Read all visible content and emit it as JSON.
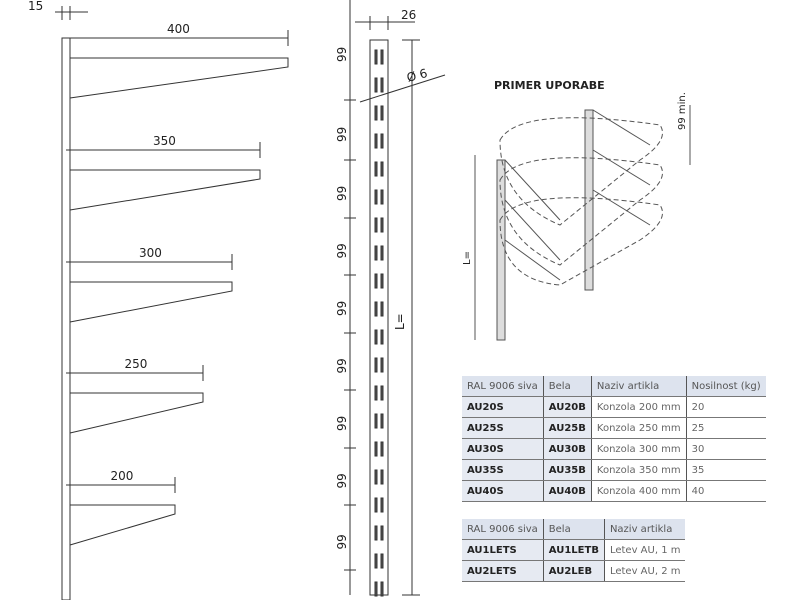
{
  "drawing": {
    "bracket_width": "15",
    "bracket_lengths": [
      "400",
      "350",
      "300",
      "250",
      "200"
    ],
    "rail_width": "26",
    "hole_diameter": "Ø 6",
    "hole_spacing": "99",
    "rail_length": "L=",
    "example_title": "PRIMER UPORABE",
    "example_min_spacing": "99 min.",
    "example_length": "L="
  },
  "brackets_table": {
    "headers": [
      "RAL 9006 siva",
      "Bela",
      "Naziv artikla",
      "Nosilnost (kg)"
    ],
    "rows": [
      [
        "AU20S",
        "AU20B",
        "Konzola 200 mm",
        "20"
      ],
      [
        "AU25S",
        "AU25B",
        "Konzola 250 mm",
        "25"
      ],
      [
        "AU30S",
        "AU30B",
        "Konzola 300 mm",
        "30"
      ],
      [
        "AU35S",
        "AU35B",
        "Konzola 350 mm",
        "35"
      ],
      [
        "AU40S",
        "AU40B",
        "Konzola 400 mm",
        "40"
      ]
    ]
  },
  "rails_table": {
    "headers": [
      "RAL 9006 siva",
      "Bela",
      "Naziv artikla"
    ],
    "rows": [
      [
        "AU1LETS",
        "AU1LETB",
        "Letev AU, 1 m"
      ],
      [
        "AU2LETS",
        "AU2LEB",
        "Letev AU, 2 m"
      ]
    ]
  }
}
